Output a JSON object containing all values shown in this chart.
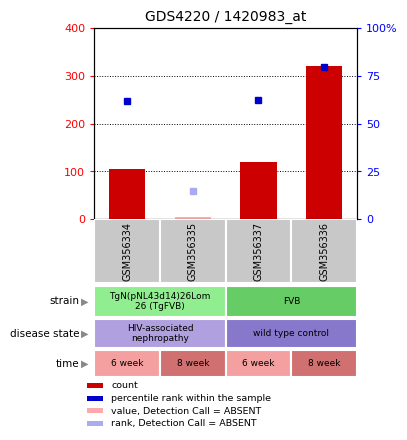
{
  "title": "GDS4220 / 1420983_at",
  "samples": [
    "GSM356334",
    "GSM356335",
    "GSM356337",
    "GSM356336"
  ],
  "count_values": [
    105,
    5,
    120,
    320
  ],
  "count_absent": [
    false,
    true,
    false,
    false
  ],
  "rank_blue_values": [
    248,
    null,
    250,
    318
  ],
  "rank_light_value": [
    null,
    58,
    null,
    null
  ],
  "ylim_left": [
    0,
    400
  ],
  "ylim_right": [
    0,
    100
  ],
  "y_ticks_left": [
    0,
    100,
    200,
    300,
    400
  ],
  "y_ticks_right": [
    0,
    25,
    50,
    75,
    100
  ],
  "y_ticks_right_labels": [
    "0",
    "25",
    "50",
    "75",
    "100%"
  ],
  "strain_row": [
    {
      "label": "TgN(pNL43d14)26Lom\n26 (TgFVB)",
      "span": [
        0,
        2
      ],
      "color": "#90ee90"
    },
    {
      "label": "FVB",
      "span": [
        2,
        4
      ],
      "color": "#66cc66"
    }
  ],
  "disease_row": [
    {
      "label": "HIV-associated\nnephropathy",
      "span": [
        0,
        2
      ],
      "color": "#b0a0e0"
    },
    {
      "label": "wild type control",
      "span": [
        2,
        4
      ],
      "color": "#8878cc"
    }
  ],
  "time_row": [
    {
      "label": "6 week",
      "span": [
        0,
        1
      ],
      "color": "#f4a0a0"
    },
    {
      "label": "8 week",
      "span": [
        1,
        2
      ],
      "color": "#d07070"
    },
    {
      "label": "6 week",
      "span": [
        2,
        3
      ],
      "color": "#f4a0a0"
    },
    {
      "label": "8 week",
      "span": [
        3,
        4
      ],
      "color": "#d07070"
    }
  ],
  "row_labels": [
    "strain",
    "disease state",
    "time"
  ],
  "legend_items": [
    {
      "color": "#cc0000",
      "label": "count"
    },
    {
      "color": "#0000cc",
      "label": "percentile rank within the sample"
    },
    {
      "color": "#ffaaaa",
      "label": "value, Detection Call = ABSENT"
    },
    {
      "color": "#aaaaee",
      "label": "rank, Detection Call = ABSENT"
    }
  ],
  "bar_color_red": "#cc0000",
  "bar_color_pink": "#ffaaaa",
  "dot_color_blue": "#0000cc",
  "dot_color_light": "#aaaaee",
  "sample_box_color": "#c8c8c8",
  "title_fontsize": 10,
  "tick_fontsize": 8,
  "label_fontsize": 8
}
